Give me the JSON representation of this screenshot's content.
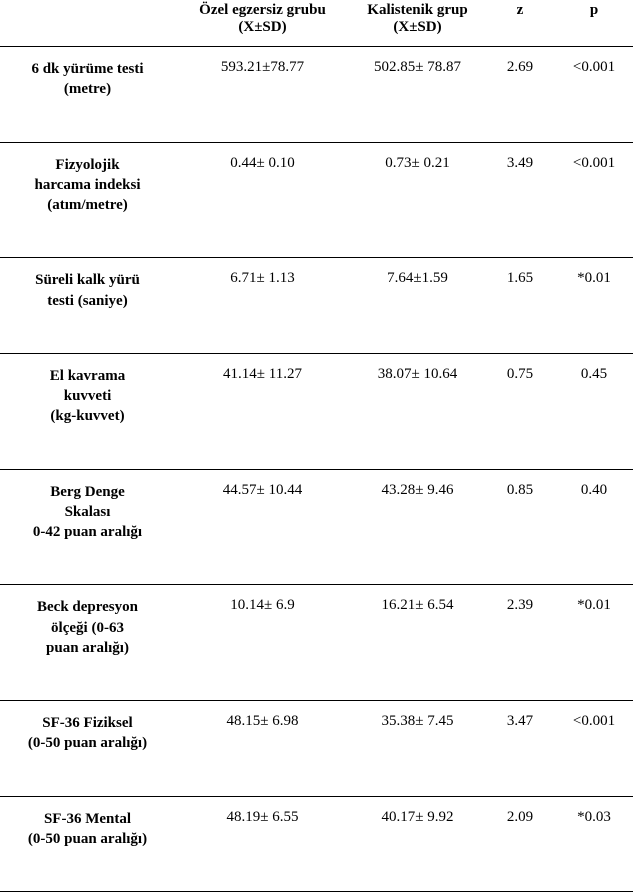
{
  "columns": {
    "label": "",
    "group1_line1": "Özel egzersiz grubu",
    "group1_line2": "(X±SD)",
    "group2_line1": "Kalistenik grup",
    "group2_line2": "(X±SD)",
    "z": "z",
    "p": "p"
  },
  "rows": [
    {
      "label_lines": [
        "6 dk yürüme testi",
        "(metre)"
      ],
      "g1": "593.21±78.77",
      "g2": "502.85± 78.87",
      "z": "2.69",
      "p": "<0.001"
    },
    {
      "label_lines": [
        "Fizyolojik",
        "harcama indeksi",
        "(atım/metre)"
      ],
      "g1": "0.44± 0.10",
      "g2": "0.73± 0.21",
      "z": "3.49",
      "p": "<0.001"
    },
    {
      "label_lines": [
        "Süreli kalk yürü",
        "testi (saniye)"
      ],
      "g1": "6.71± 1.13",
      "g2": "7.64±1.59",
      "z": "1.65",
      "p": "*0.01"
    },
    {
      "label_lines": [
        "El kavrama",
        "kuvveti",
        "(kg-kuvvet)"
      ],
      "g1": "41.14± 11.27",
      "g2": "38.07± 10.64",
      "z": "0.75",
      "p": "0.45"
    },
    {
      "label_lines": [
        "Berg Denge",
        "Skalası",
        "0-42 puan aralığı"
      ],
      "g1": "44.57± 10.44",
      "g2": "43.28± 9.46",
      "z": "0.85",
      "p": "0.40"
    },
    {
      "label_lines": [
        "Beck depresyon",
        "ölçeği    (0-63",
        "puan aralığı)"
      ],
      "g1": "10.14± 6.9",
      "g2": "16.21± 6.54",
      "z": "2.39",
      "p": "*0.01"
    },
    {
      "label_lines": [
        "SF-36 Fiziksel",
        "(0-50 puan aralığı)"
      ],
      "g1": "48.15± 6.98",
      "g2": "35.38± 7.45",
      "z": "3.47",
      "p": "<0.001"
    },
    {
      "label_lines": [
        "SF-36 Mental",
        "(0-50 puan aralığı)"
      ],
      "g1": "48.19± 6.55",
      "g2": "40.17± 9.92",
      "z": "2.09",
      "p": "*0.03"
    }
  ]
}
